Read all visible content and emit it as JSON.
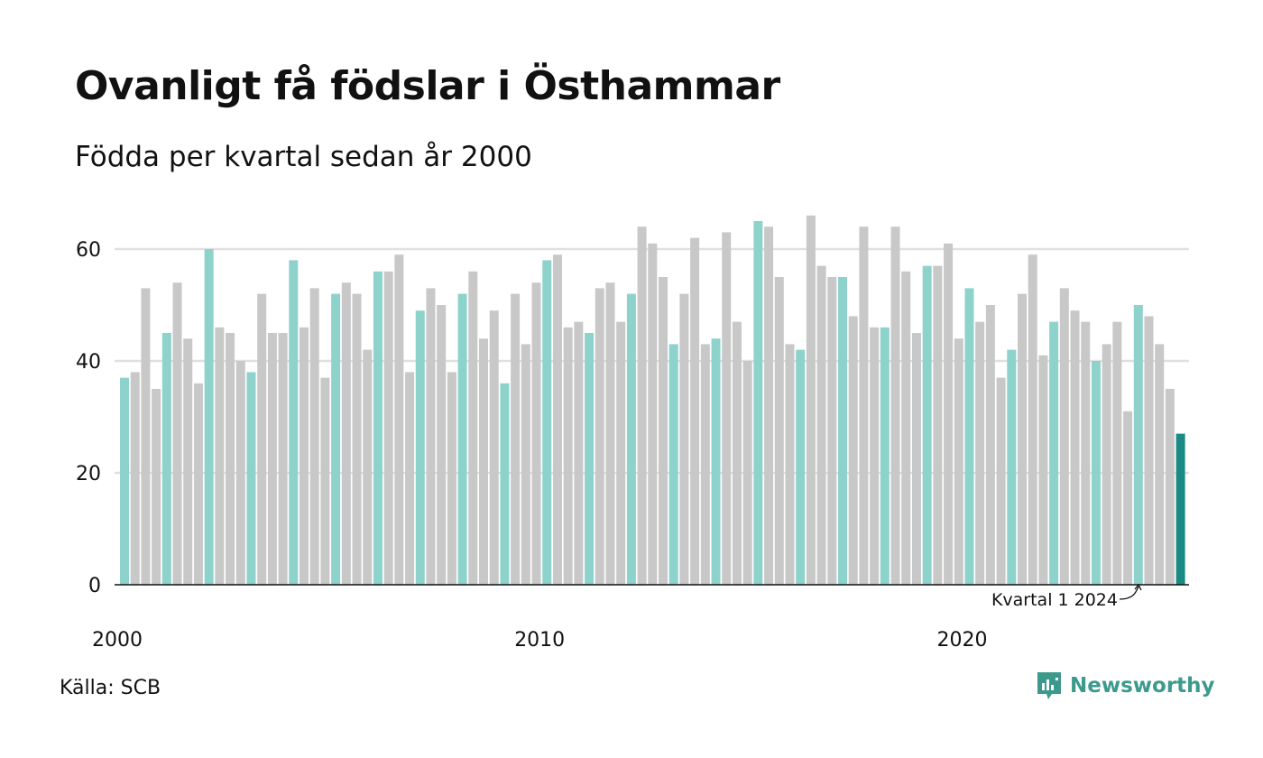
{
  "title": "Ovanligt få födslar i Östhammar",
  "subtitle": "Födda per kvartal sedan år 2000",
  "source": "Källa: SCB",
  "brand": {
    "name": "Newsworthy",
    "icon": "newsworthy-logo-icon"
  },
  "colors": {
    "q1": "#8dd3cc",
    "other": "#c8c8c8",
    "highlight": "#1a8a84",
    "grid": "#e0e0e0",
    "axis": "#111111",
    "brand": "#3c9a8d"
  },
  "chart_data": {
    "type": "bar",
    "ylim": [
      0,
      70
    ],
    "yticks": [
      0,
      20,
      40,
      60
    ],
    "xtick_labels": [
      "2000",
      "2010",
      "2020"
    ],
    "grid": true,
    "annotation": {
      "text": "Kvartal 1 2024",
      "target_index": 100
    },
    "series": [
      {
        "values": [
          37,
          38,
          53,
          35,
          45,
          54,
          44,
          36,
          60,
          46,
          45,
          40,
          38,
          52,
          45,
          45,
          58,
          46,
          53,
          37,
          52,
          54,
          52,
          42,
          56,
          56,
          59,
          38,
          49,
          53,
          50,
          38,
          52,
          56,
          44,
          49,
          36,
          52,
          43,
          54,
          58,
          59,
          46,
          47,
          45,
          53,
          54,
          47,
          52,
          64,
          61,
          55,
          43,
          52,
          62,
          43,
          44,
          63,
          47,
          40,
          65,
          64,
          55,
          43,
          42,
          66,
          57,
          55,
          55,
          48,
          64,
          46,
          46,
          64,
          56,
          45,
          57,
          57,
          61,
          44,
          53,
          47,
          50,
          37,
          42,
          52,
          59,
          41,
          47,
          53,
          49,
          47,
          40,
          43,
          47,
          31,
          50,
          48,
          43,
          35,
          27
        ]
      }
    ]
  }
}
